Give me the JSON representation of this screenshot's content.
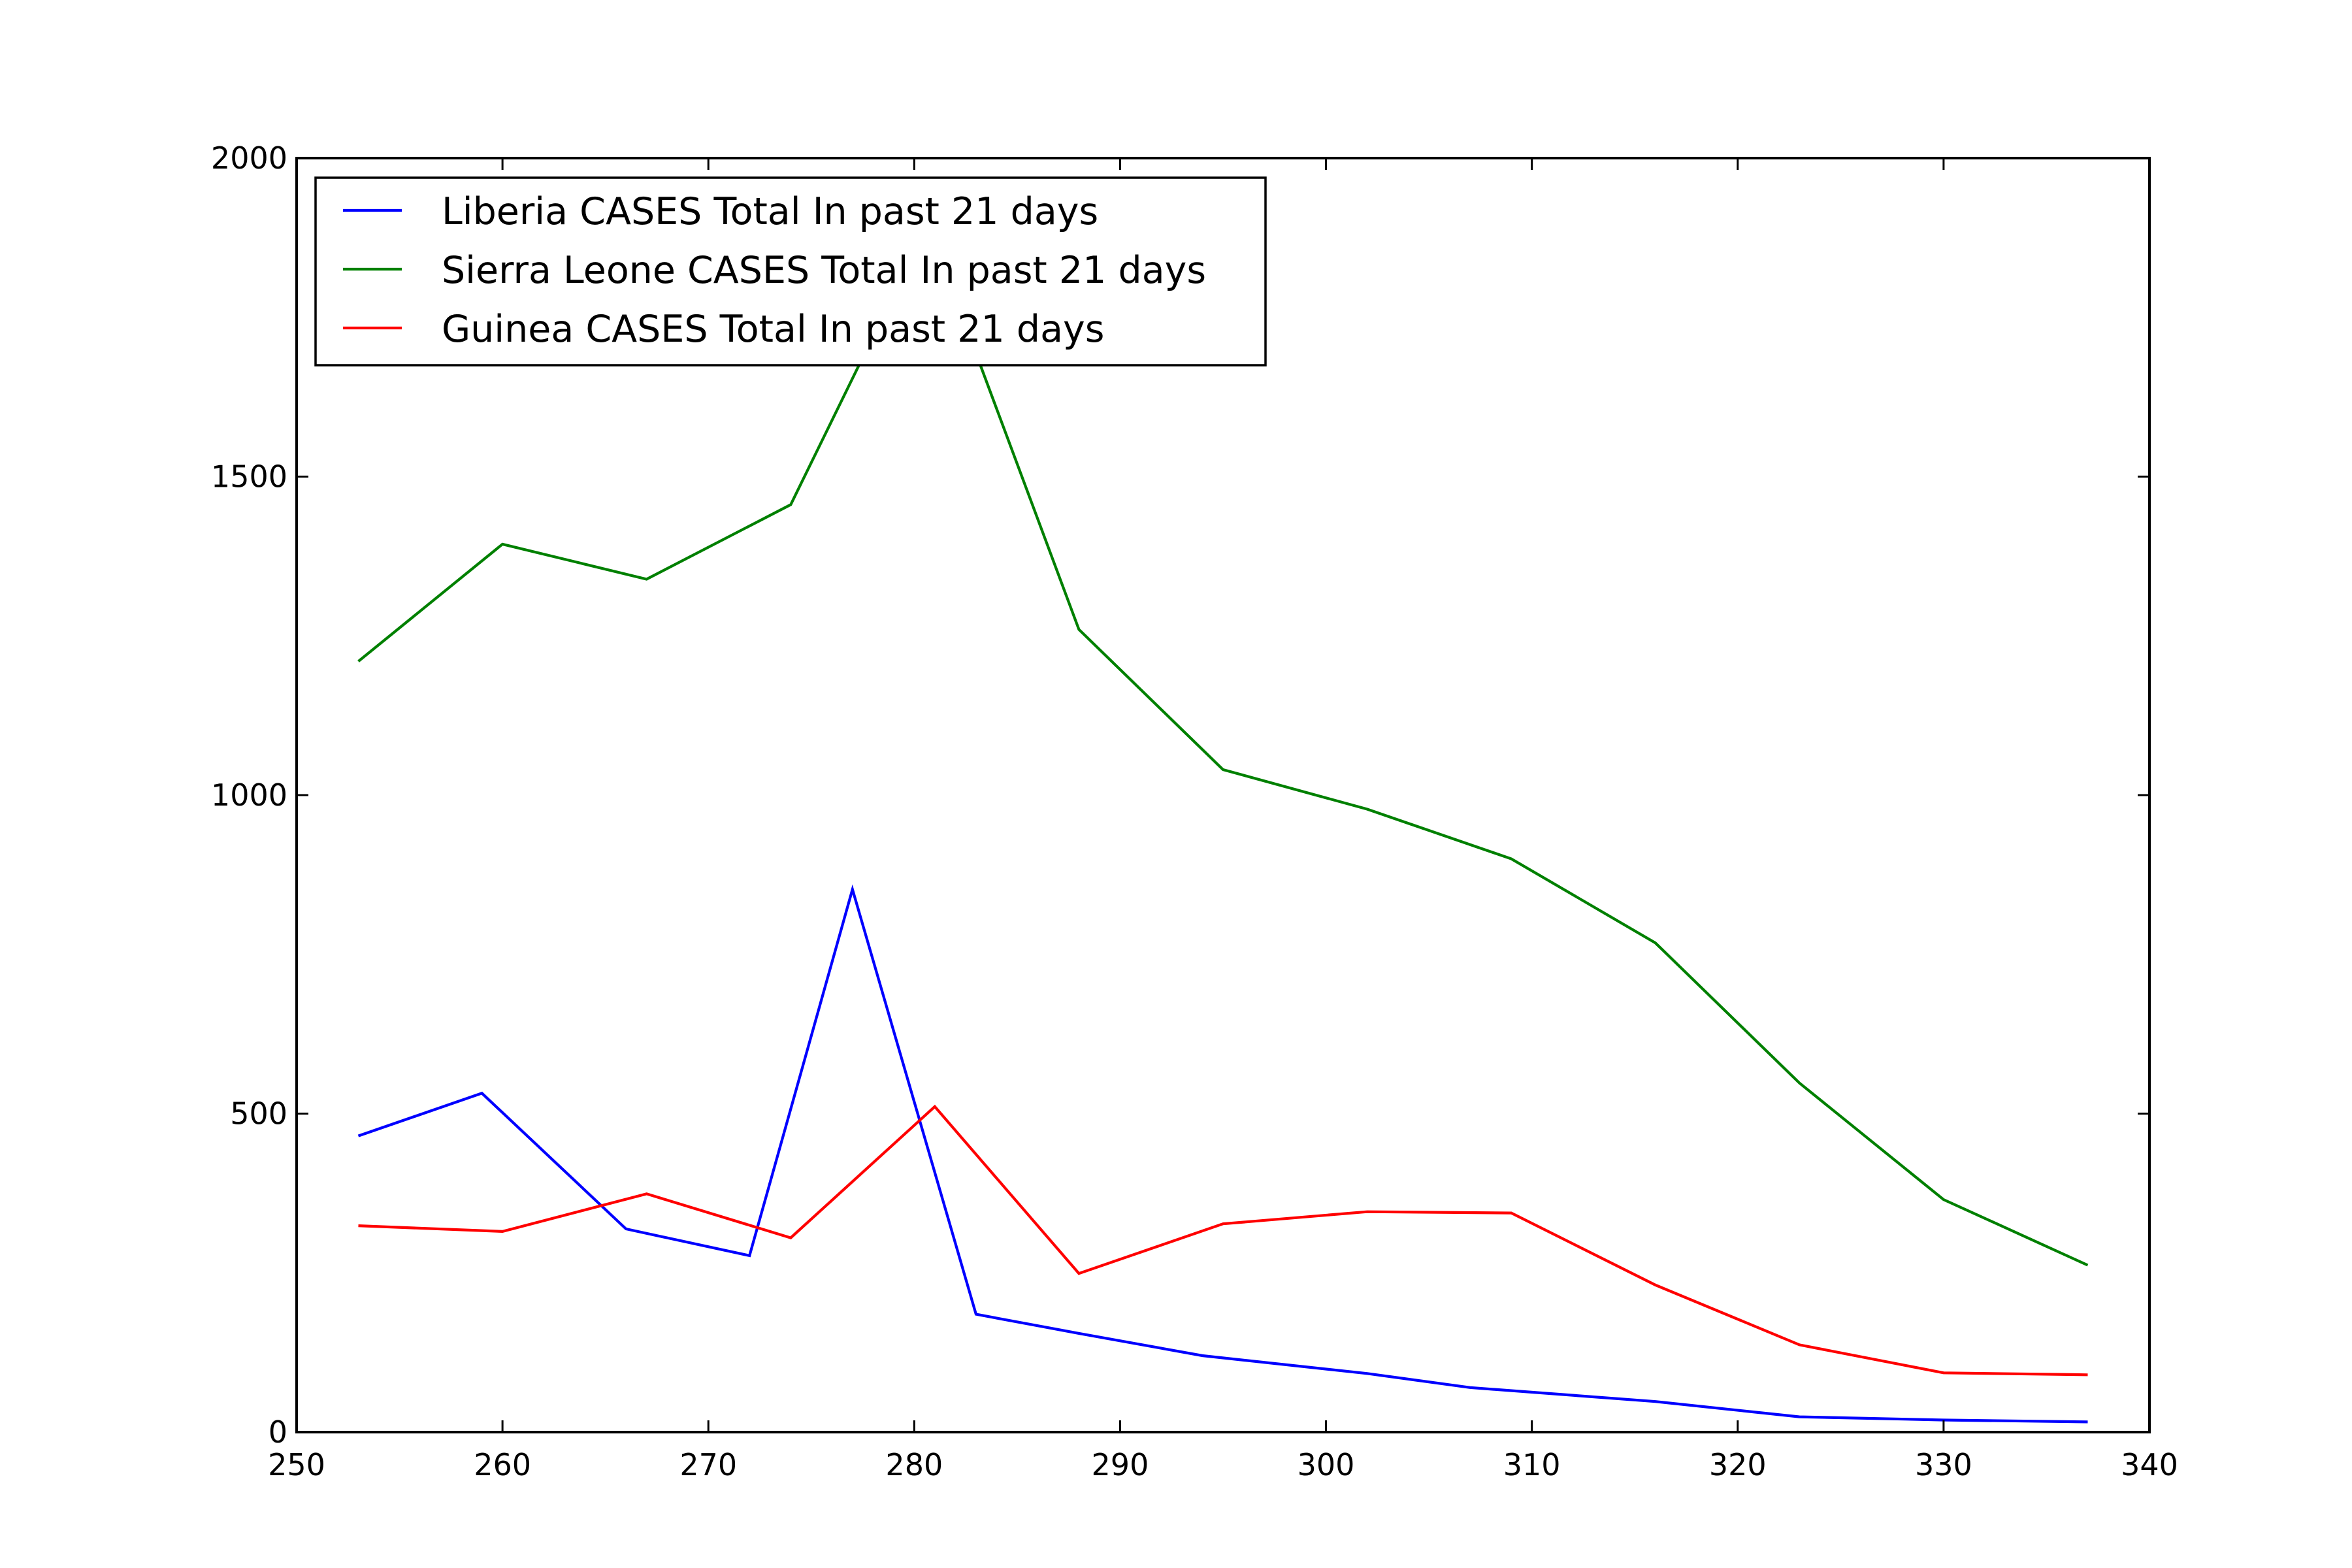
{
  "chart_data": {
    "type": "line",
    "title": "",
    "xlabel": "",
    "ylabel": "",
    "xlim": [
      250,
      340
    ],
    "ylim": [
      0,
      2000
    ],
    "xticks": [
      250,
      260,
      270,
      280,
      290,
      300,
      310,
      320,
      330,
      340
    ],
    "yticks": [
      0,
      500,
      1000,
      1500,
      2000
    ],
    "grid": false,
    "legend_position": "upper-left",
    "series": [
      {
        "name": "Liberia CASES Total In past 21 days",
        "color": "#0000ff",
        "x": [
          253,
          259,
          266,
          272,
          277,
          283,
          288,
          294,
          302,
          307,
          316,
          323,
          330,
          337
        ],
        "y": [
          465,
          532,
          319,
          277,
          852,
          185,
          155,
          120,
          92,
          70,
          48,
          24,
          19,
          16
        ]
      },
      {
        "name": "Sierra Leone CASES Total In past 21 days",
        "color": "#008000",
        "x": [
          253,
          260,
          267,
          274,
          278,
          282,
          288,
          295,
          302,
          309,
          316,
          323,
          330,
          337
        ],
        "y": [
          1210,
          1394,
          1339,
          1456,
          1720,
          1780,
          1260,
          1040,
          978,
          900,
          768,
          548,
          365,
          262
        ]
      },
      {
        "name": "Guinea CASES Total In past 21 days",
        "color": "#ff0000",
        "x": [
          253,
          260,
          267,
          274,
          281,
          288,
          295,
          302,
          309,
          316,
          323,
          330,
          337
        ],
        "y": [
          324,
          315,
          374,
          305,
          511,
          249,
          327,
          346,
          344,
          231,
          137,
          93,
          90
        ]
      }
    ]
  }
}
